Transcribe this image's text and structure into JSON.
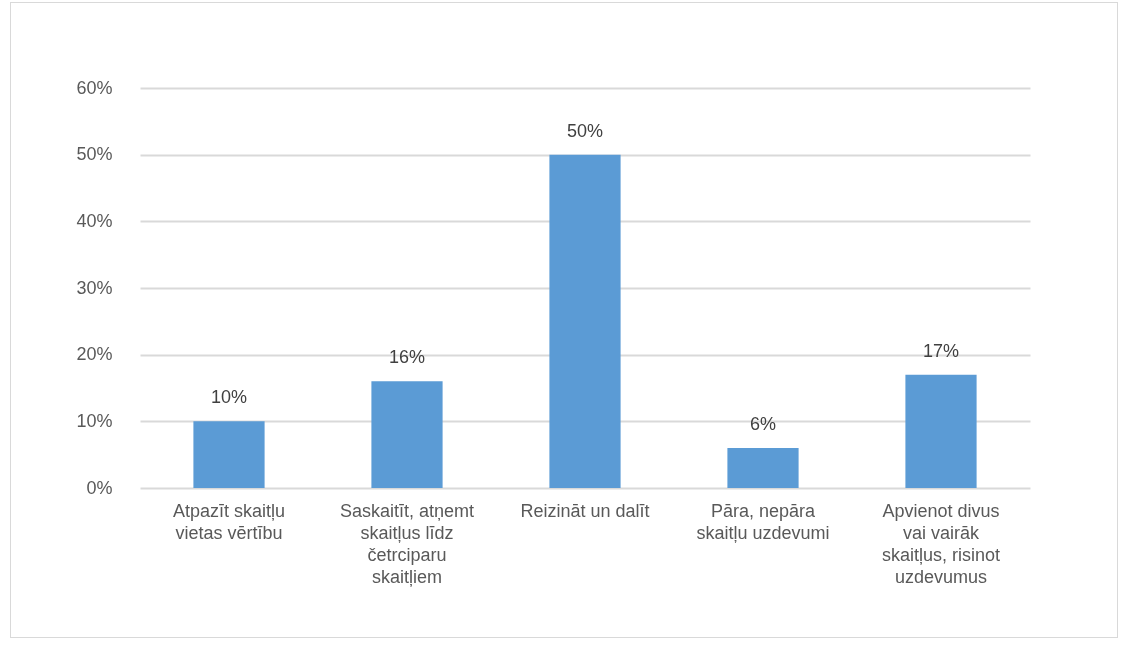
{
  "chart_data": {
    "type": "bar",
    "categories": [
      "Atpazīt skaitļu vietas vērtību",
      "Saskaitīt, atņemt skaitļus līdz četrciparu skaitļiem",
      "Reizināt un dalīt",
      "Pāra, nepāra skaitļu uzdevumi",
      "Apvienot divus vai vairāk skaitļus, risinot uzdevumus"
    ],
    "values": [
      10,
      16,
      50,
      6,
      17
    ],
    "value_labels": [
      "10%",
      "16%",
      "50%",
      "6%",
      "17%"
    ],
    "color": "#5b9bd5",
    "ylim": [
      0,
      60
    ],
    "yticks": [
      {
        "value": 0,
        "label": "0%"
      },
      {
        "value": 10,
        "label": "10%"
      },
      {
        "value": 20,
        "label": "20%"
      },
      {
        "value": 30,
        "label": "30%"
      },
      {
        "value": 40,
        "label": "40%"
      },
      {
        "value": 50,
        "label": "50%"
      },
      {
        "value": 60,
        "label": "60%"
      }
    ],
    "grid": "y"
  }
}
